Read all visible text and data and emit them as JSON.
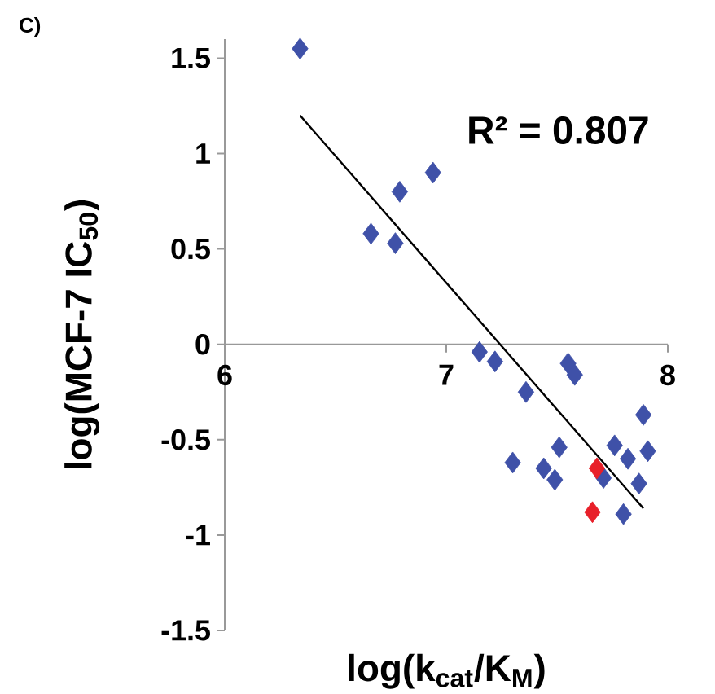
{
  "chart_data": {
    "type": "scatter",
    "xlabel": "log(k$_{cat}$/K$_{M}$)",
    "ylabel": "log(MCF-7 IC$_{50}$)",
    "annotations": [
      "C)",
      "R² = 0.807"
    ],
    "xlim": [
      6,
      8
    ],
    "ylim": [
      -1.5,
      1.6
    ],
    "xticks": [
      6,
      7,
      8
    ],
    "yticks": [
      {
        "value": -1.5,
        "label": "-1.5"
      },
      {
        "value": -1,
        "label": "-1"
      },
      {
        "value": -0.5,
        "label": "-0.5"
      },
      0,
      {
        "value": 0.5,
        "label": "0.5"
      },
      1,
      {
        "value": 1.5,
        "label": "1.5"
      }
    ],
    "marker": "diamond",
    "series": [
      {
        "color": "#3f51a8",
        "x": [
          6.34,
          6.66,
          6.77,
          6.79,
          6.94,
          7.15,
          7.22,
          7.36,
          7.55,
          7.58,
          7.89,
          7.3,
          7.51,
          7.44,
          7.49,
          7.76,
          7.82,
          7.91,
          7.71,
          7.87,
          7.8
        ],
        "values": [
          1.55,
          0.58,
          0.53,
          0.8,
          0.9,
          -0.04,
          -0.09,
          -0.25,
          -0.1,
          -0.16,
          -0.37,
          -0.62,
          -0.54,
          -0.65,
          -0.71,
          -0.53,
          -0.6,
          -0.56,
          -0.7,
          -0.73,
          -0.89
        ]
      },
      {
        "color": "#e8202a",
        "x": [
          7.68,
          7.66
        ],
        "values": [
          -0.65,
          -0.88
        ]
      },
      {
        "type": "line",
        "marker": "none",
        "color": "#000000",
        "x": [
          6.34,
          7.89
        ],
        "values": [
          1.2,
          -0.86
        ]
      }
    ]
  }
}
